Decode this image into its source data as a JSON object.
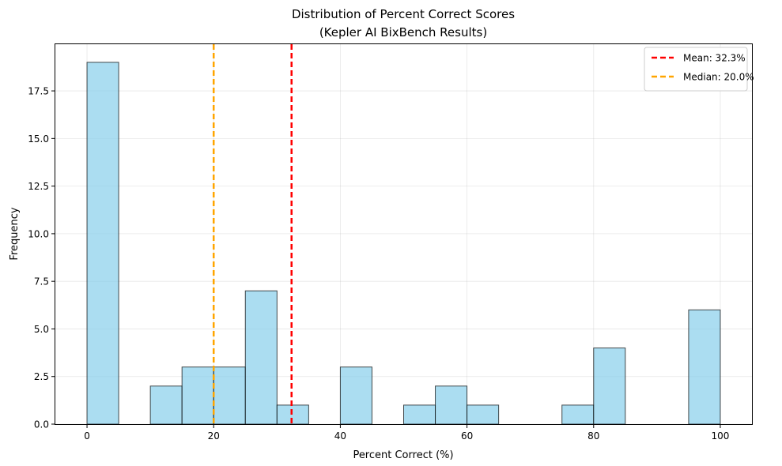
{
  "chart_data": {
    "type": "bar",
    "title_line1": "Distribution of Percent Correct Scores",
    "title_line2": "(Kepler AI BixBench Results)",
    "xlabel": "Percent Correct (%)",
    "ylabel": "Frequency",
    "xlim": [
      -5,
      105
    ],
    "ylim": [
      0,
      19.95
    ],
    "xticks": [
      0,
      20,
      40,
      60,
      80,
      100
    ],
    "xtick_labels": [
      "0",
      "20",
      "40",
      "60",
      "80",
      "100"
    ],
    "yticks": [
      0,
      2.5,
      5,
      7.5,
      10,
      12.5,
      15,
      17.5
    ],
    "ytick_labels": [
      "0.0",
      "2.5",
      "5.0",
      "7.5",
      "10.0",
      "12.5",
      "15.0",
      "17.5"
    ],
    "grid": true,
    "bin_width": 5,
    "bins": [
      {
        "start": 0,
        "count": 19
      },
      {
        "start": 5,
        "count": 0
      },
      {
        "start": 10,
        "count": 2
      },
      {
        "start": 15,
        "count": 3
      },
      {
        "start": 20,
        "count": 3
      },
      {
        "start": 25,
        "count": 7
      },
      {
        "start": 30,
        "count": 1
      },
      {
        "start": 35,
        "count": 0
      },
      {
        "start": 40,
        "count": 3
      },
      {
        "start": 45,
        "count": 0
      },
      {
        "start": 50,
        "count": 1
      },
      {
        "start": 55,
        "count": 2
      },
      {
        "start": 60,
        "count": 1
      },
      {
        "start": 65,
        "count": 0
      },
      {
        "start": 70,
        "count": 0
      },
      {
        "start": 75,
        "count": 1
      },
      {
        "start": 80,
        "count": 4
      },
      {
        "start": 85,
        "count": 0
      },
      {
        "start": 90,
        "count": 0
      },
      {
        "start": 95,
        "count": 6
      }
    ],
    "bar_color": "#87CEEB",
    "bar_edge_color": "#000000",
    "reference_lines": [
      {
        "label": "Mean: 32.3%",
        "value": 32.3,
        "color": "#FF0000"
      },
      {
        "label": "Median: 20.0%",
        "value": 20.0,
        "color": "#FFA500"
      }
    ],
    "legend_position": "top-right"
  }
}
